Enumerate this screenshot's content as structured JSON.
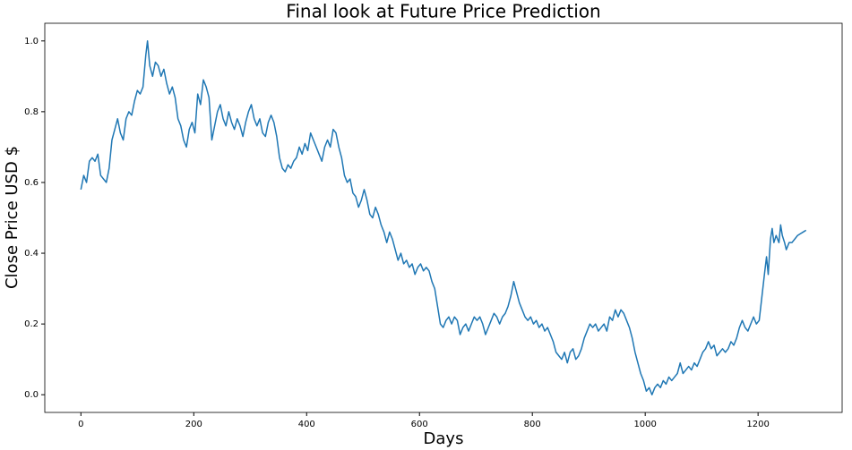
{
  "chart_data": {
    "type": "line",
    "title": "Final look at Future Price Prediction",
    "x_label": "Days",
    "y_label": "Close Price USD $",
    "x": [
      0,
      5,
      10,
      15,
      20,
      25,
      30,
      35,
      40,
      45,
      50,
      55,
      60,
      65,
      70,
      75,
      80,
      85,
      90,
      95,
      100,
      105,
      110,
      115,
      118,
      122,
      127,
      132,
      137,
      142,
      147,
      152,
      157,
      162,
      167,
      172,
      177,
      182,
      187,
      192,
      197,
      202,
      207,
      212,
      217,
      222,
      227,
      232,
      237,
      242,
      247,
      252,
      257,
      262,
      267,
      272,
      277,
      282,
      287,
      292,
      297,
      302,
      307,
      312,
      317,
      322,
      327,
      332,
      337,
      342,
      347,
      352,
      357,
      362,
      367,
      372,
      377,
      382,
      387,
      392,
      397,
      402,
      407,
      412,
      417,
      422,
      427,
      432,
      437,
      442,
      447,
      452,
      457,
      462,
      467,
      472,
      477,
      482,
      487,
      492,
      497,
      502,
      507,
      512,
      517,
      522,
      527,
      532,
      537,
      542,
      547,
      552,
      557,
      562,
      567,
      572,
      577,
      582,
      587,
      592,
      597,
      602,
      607,
      612,
      617,
      622,
      627,
      632,
      637,
      642,
      647,
      652,
      657,
      662,
      667,
      672,
      677,
      682,
      687,
      692,
      697,
      702,
      707,
      712,
      717,
      722,
      727,
      732,
      737,
      742,
      747,
      752,
      757,
      762,
      767,
      772,
      777,
      782,
      787,
      792,
      797,
      802,
      807,
      812,
      817,
      822,
      827,
      832,
      837,
      842,
      847,
      852,
      857,
      862,
      867,
      872,
      877,
      882,
      887,
      892,
      897,
      902,
      907,
      912,
      917,
      922,
      927,
      932,
      937,
      942,
      947,
      952,
      957,
      962,
      967,
      972,
      977,
      982,
      987,
      992,
      997,
      1002,
      1007,
      1012,
      1017,
      1022,
      1027,
      1032,
      1037,
      1042,
      1047,
      1052,
      1057,
      1062,
      1067,
      1072,
      1077,
      1082,
      1087,
      1092,
      1097,
      1102,
      1107,
      1112,
      1117,
      1122,
      1127,
      1132,
      1137,
      1142,
      1147,
      1152,
      1157,
      1162,
      1167,
      1172,
      1177,
      1182,
      1187,
      1192,
      1197,
      1202,
      1207,
      1212,
      1215,
      1218,
      1222,
      1225,
      1228,
      1232,
      1237,
      1240,
      1243,
      1247,
      1250,
      1255,
      1260,
      1265,
      1270,
      1275,
      1280,
      1285
    ],
    "series": [
      {
        "color": "#1f77b4",
        "values": [
          0.58,
          0.62,
          0.6,
          0.66,
          0.67,
          0.66,
          0.68,
          0.62,
          0.61,
          0.6,
          0.64,
          0.72,
          0.75,
          0.78,
          0.74,
          0.72,
          0.78,
          0.8,
          0.79,
          0.83,
          0.86,
          0.85,
          0.87,
          0.96,
          1.0,
          0.93,
          0.9,
          0.94,
          0.93,
          0.9,
          0.92,
          0.88,
          0.85,
          0.87,
          0.84,
          0.78,
          0.76,
          0.72,
          0.7,
          0.75,
          0.77,
          0.74,
          0.85,
          0.82,
          0.89,
          0.87,
          0.84,
          0.72,
          0.76,
          0.8,
          0.82,
          0.78,
          0.76,
          0.8,
          0.77,
          0.75,
          0.78,
          0.76,
          0.73,
          0.77,
          0.8,
          0.82,
          0.78,
          0.76,
          0.78,
          0.74,
          0.73,
          0.77,
          0.79,
          0.77,
          0.73,
          0.67,
          0.64,
          0.63,
          0.65,
          0.64,
          0.66,
          0.67,
          0.7,
          0.68,
          0.71,
          0.69,
          0.74,
          0.72,
          0.7,
          0.68,
          0.66,
          0.7,
          0.72,
          0.7,
          0.75,
          0.74,
          0.7,
          0.67,
          0.62,
          0.6,
          0.61,
          0.57,
          0.56,
          0.53,
          0.55,
          0.58,
          0.55,
          0.51,
          0.5,
          0.53,
          0.51,
          0.48,
          0.46,
          0.43,
          0.46,
          0.44,
          0.41,
          0.38,
          0.4,
          0.37,
          0.38,
          0.36,
          0.37,
          0.34,
          0.36,
          0.37,
          0.35,
          0.36,
          0.35,
          0.32,
          0.3,
          0.25,
          0.2,
          0.19,
          0.21,
          0.22,
          0.2,
          0.22,
          0.21,
          0.17,
          0.19,
          0.2,
          0.18,
          0.2,
          0.22,
          0.21,
          0.22,
          0.2,
          0.17,
          0.19,
          0.21,
          0.23,
          0.22,
          0.2,
          0.22,
          0.23,
          0.25,
          0.28,
          0.32,
          0.29,
          0.26,
          0.24,
          0.22,
          0.21,
          0.22,
          0.2,
          0.21,
          0.19,
          0.2,
          0.18,
          0.19,
          0.17,
          0.15,
          0.12,
          0.11,
          0.1,
          0.12,
          0.09,
          0.12,
          0.13,
          0.1,
          0.11,
          0.13,
          0.16,
          0.18,
          0.2,
          0.19,
          0.2,
          0.18,
          0.19,
          0.2,
          0.18,
          0.22,
          0.21,
          0.24,
          0.22,
          0.24,
          0.23,
          0.21,
          0.19,
          0.16,
          0.12,
          0.09,
          0.06,
          0.04,
          0.01,
          0.02,
          0,
          0.02,
          0.03,
          0.02,
          0.04,
          0.03,
          0.05,
          0.04,
          0.05,
          0.06,
          0.09,
          0.06,
          0.07,
          0.08,
          0.07,
          0.09,
          0.08,
          0.1,
          0.12,
          0.13,
          0.15,
          0.13,
          0.14,
          0.11,
          0.12,
          0.13,
          0.12,
          0.13,
          0.15,
          0.14,
          0.16,
          0.19,
          0.21,
          0.19,
          0.18,
          0.2,
          0.22,
          0.2,
          0.21,
          0.28,
          0.35,
          0.39,
          0.34,
          0.44,
          0.47,
          0.43,
          0.45,
          0.43,
          0.48,
          0.45,
          0.43,
          0.41,
          0.43,
          0.43,
          0.44,
          0.45,
          0.455,
          0.46,
          0.465
        ]
      }
    ],
    "xlim": [
      -64,
      1349
    ],
    "ylim": [
      -0.05,
      1.05
    ],
    "xticks": [
      0,
      200,
      400,
      600,
      800,
      1000,
      1200
    ],
    "yticks": [
      {
        "value": 0,
        "label": "0.0"
      },
      0.2,
      0.4,
      0.6,
      0.8,
      {
        "value": 1,
        "label": "1.0"
      }
    ],
    "grid": false
  }
}
